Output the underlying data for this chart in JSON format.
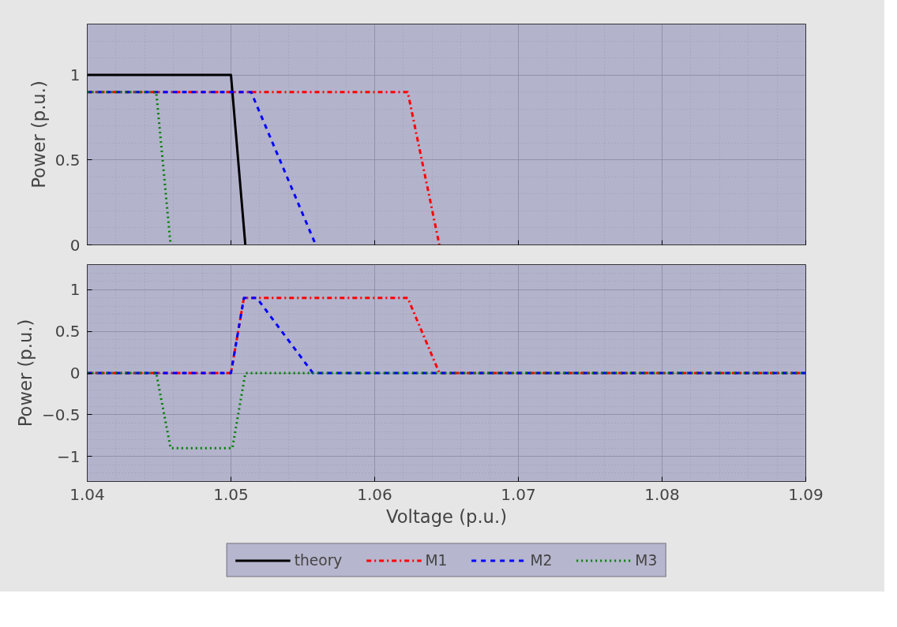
{
  "chart_data": [
    {
      "type": "line",
      "ylabel": "Power (p.u.)",
      "xlim": [
        1.04,
        1.09
      ],
      "xticks": [
        1.04,
        1.05,
        1.06,
        1.07,
        1.08,
        1.09
      ],
      "ylim": [
        0,
        1.3
      ],
      "yticks": [
        0,
        0.5,
        1
      ],
      "grid": true,
      "tick_labels": "y",
      "legend": "bottom",
      "series": [
        {
          "name": "theory",
          "color": "#000000",
          "line_style": "solid",
          "x": [
            1.04,
            1.05,
            1.051
          ],
          "values": [
            1,
            1,
            0
          ]
        },
        {
          "name": "M1",
          "color": "#ff0000",
          "line_style": "dashdot",
          "x": [
            1.04,
            1.0623,
            1.0645
          ],
          "values": [
            0.9,
            0.9,
            0
          ]
        },
        {
          "name": "M2",
          "color": "#0000ff",
          "line_style": "dashed",
          "x": [
            1.04,
            1.0514,
            1.0559
          ],
          "values": [
            0.9,
            0.9,
            0
          ]
        },
        {
          "name": "M3",
          "color": "#008000",
          "line_style": "dotted",
          "x": [
            1.04,
            1.0448,
            1.0458
          ],
          "values": [
            0.9,
            0.9,
            0
          ]
        }
      ]
    },
    {
      "type": "line",
      "xlabel": "Voltage (p.u.)",
      "ylabel": "Power (p.u.)",
      "xlim": [
        1.04,
        1.09
      ],
      "xticks": [
        1.04,
        1.05,
        1.06,
        1.07,
        1.08,
        1.09
      ],
      "ylim": [
        -1.3,
        1.3
      ],
      "yticks": [
        -1,
        -0.5,
        0,
        0.5,
        1
      ],
      "grid": true,
      "legend": "bottom",
      "series": [
        {
          "name": "M1",
          "color": "#ff0000",
          "line_style": "dashdot",
          "x": [
            1.04,
            1.05,
            1.0509,
            1.0623,
            1.0645,
            1.09
          ],
          "values": [
            0,
            0,
            0.9,
            0.9,
            0,
            0
          ]
        },
        {
          "name": "M2",
          "color": "#0000ff",
          "line_style": "dashed",
          "x": [
            1.04,
            1.05,
            1.0509,
            1.0518,
            1.0557,
            1.09
          ],
          "values": [
            0,
            0,
            0.9,
            0.9,
            0,
            0
          ]
        },
        {
          "name": "M3",
          "color": "#008000",
          "line_style": "dotted",
          "x": [
            1.04,
            1.0448,
            1.0458,
            1.0501,
            1.051,
            1.09
          ],
          "values": [
            0,
            0,
            -0.9,
            -0.9,
            0,
            0
          ]
        }
      ]
    }
  ]
}
